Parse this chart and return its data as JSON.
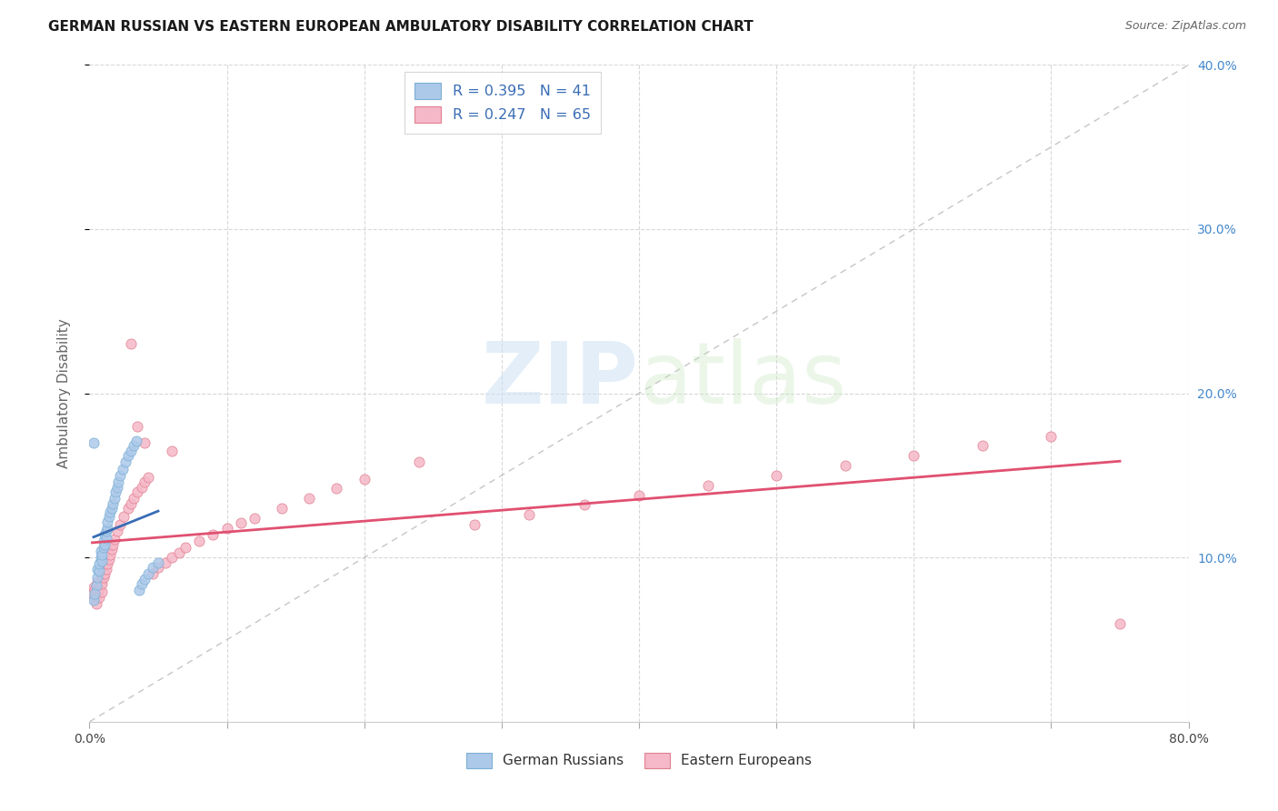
{
  "title": "GERMAN RUSSIAN VS EASTERN EUROPEAN AMBULATORY DISABILITY CORRELATION CHART",
  "source": "Source: ZipAtlas.com",
  "ylabel": "Ambulatory Disability",
  "xlim": [
    0.0,
    0.8
  ],
  "ylim": [
    -0.02,
    0.42
  ],
  "plot_ylim": [
    0.0,
    0.4
  ],
  "xticks": [
    0.0,
    0.1,
    0.2,
    0.3,
    0.4,
    0.5,
    0.6,
    0.7,
    0.8
  ],
  "xticklabels_show": [
    "0.0%",
    "80.0%"
  ],
  "yticks_right": [
    0.1,
    0.2,
    0.3,
    0.4
  ],
  "yticklabels_right": [
    "10.0%",
    "20.0%",
    "30.0%",
    "40.0%"
  ],
  "watermark": "ZIPatlas",
  "series1_color": "#adc9ea",
  "series2_color": "#f5b8c8",
  "series1_edge": "#7bafd4",
  "series2_edge": "#e08090",
  "regression1_color": "#3a6db5",
  "regression2_color": "#e05070",
  "diagonal_color": "#c0c0c0",
  "grid_color": "#d8d8d8",
  "title_color": "#1a1a1a",
  "source_color": "#666666",
  "ylabel_color": "#666666",
  "yaxis_right_color": "#4488cc",
  "legend_text_color": "#3a6db5",
  "R1": 0.395,
  "N1": 41,
  "R2": 0.247,
  "N2": 65,
  "marker_size": 65,
  "blue_x": [
    0.003,
    0.005,
    0.006,
    0.006,
    0.007,
    0.007,
    0.008,
    0.008,
    0.009,
    0.009,
    0.01,
    0.01,
    0.011,
    0.011,
    0.012,
    0.012,
    0.013,
    0.013,
    0.014,
    0.015,
    0.016,
    0.017,
    0.018,
    0.019,
    0.02,
    0.021,
    0.022,
    0.024,
    0.026,
    0.028,
    0.03,
    0.032,
    0.034,
    0.036,
    0.038,
    0.04,
    0.043,
    0.046,
    0.05,
    0.003,
    0.004
  ],
  "blue_y": [
    0.17,
    0.083,
    0.088,
    0.093,
    0.092,
    0.096,
    0.1,
    0.104,
    0.098,
    0.102,
    0.106,
    0.11,
    0.114,
    0.108,
    0.112,
    0.116,
    0.118,
    0.122,
    0.125,
    0.128,
    0.13,
    0.133,
    0.136,
    0.14,
    0.143,
    0.146,
    0.15,
    0.154,
    0.158,
    0.162,
    0.165,
    0.168,
    0.171,
    0.08,
    0.084,
    0.087,
    0.09,
    0.094,
    0.097,
    0.074,
    0.078
  ],
  "pink_x": [
    0.002,
    0.003,
    0.004,
    0.004,
    0.005,
    0.005,
    0.006,
    0.006,
    0.007,
    0.007,
    0.008,
    0.008,
    0.009,
    0.009,
    0.01,
    0.01,
    0.011,
    0.012,
    0.013,
    0.014,
    0.015,
    0.016,
    0.017,
    0.018,
    0.02,
    0.022,
    0.025,
    0.028,
    0.03,
    0.032,
    0.035,
    0.038,
    0.04,
    0.043,
    0.046,
    0.05,
    0.055,
    0.06,
    0.065,
    0.07,
    0.08,
    0.09,
    0.1,
    0.11,
    0.12,
    0.14,
    0.16,
    0.18,
    0.2,
    0.24,
    0.28,
    0.32,
    0.36,
    0.4,
    0.45,
    0.5,
    0.55,
    0.6,
    0.65,
    0.7,
    0.03,
    0.035,
    0.04,
    0.06,
    0.75
  ],
  "pink_y": [
    0.078,
    0.082,
    0.075,
    0.08,
    0.072,
    0.077,
    0.08,
    0.085,
    0.076,
    0.081,
    0.085,
    0.09,
    0.079,
    0.084,
    0.088,
    0.093,
    0.09,
    0.093,
    0.096,
    0.099,
    0.102,
    0.105,
    0.108,
    0.111,
    0.116,
    0.12,
    0.125,
    0.13,
    0.133,
    0.136,
    0.14,
    0.143,
    0.146,
    0.149,
    0.09,
    0.094,
    0.097,
    0.1,
    0.103,
    0.106,
    0.11,
    0.114,
    0.118,
    0.121,
    0.124,
    0.13,
    0.136,
    0.142,
    0.148,
    0.158,
    0.12,
    0.126,
    0.132,
    0.138,
    0.144,
    0.15,
    0.156,
    0.162,
    0.168,
    0.174,
    0.23,
    0.18,
    0.17,
    0.165,
    0.06
  ]
}
